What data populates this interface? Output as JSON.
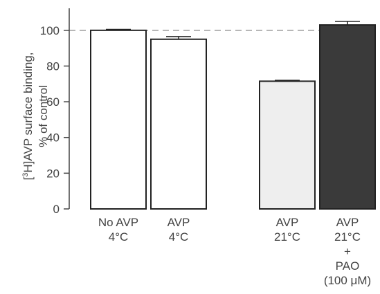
{
  "chart_data": {
    "type": "bar",
    "categories": [
      [
        "No AVP",
        "4°C"
      ],
      [
        "AVP",
        "4°C"
      ],
      [
        "AVP",
        "21°C"
      ],
      [
        "AVP",
        "21°C",
        "+",
        "PAO",
        "(100 μM)"
      ]
    ],
    "values": [
      100,
      95,
      71.5,
      103
    ],
    "errors": [
      0.5,
      1.5,
      0.5,
      2
    ],
    "bar_fills": [
      "#ffffff",
      "#ffffff",
      "#eeeeee",
      "#3a3a3a"
    ],
    "ylabel_line1_pre": "[",
    "ylabel_line1_sup": "3",
    "ylabel_line1_post": "H]AVP surface binding,",
    "ylabel_line2": "% of control",
    "yticks": [
      0,
      20,
      40,
      60,
      80,
      100
    ],
    "ylim": [
      0,
      110
    ],
    "reference_line": 100,
    "grid": false
  }
}
